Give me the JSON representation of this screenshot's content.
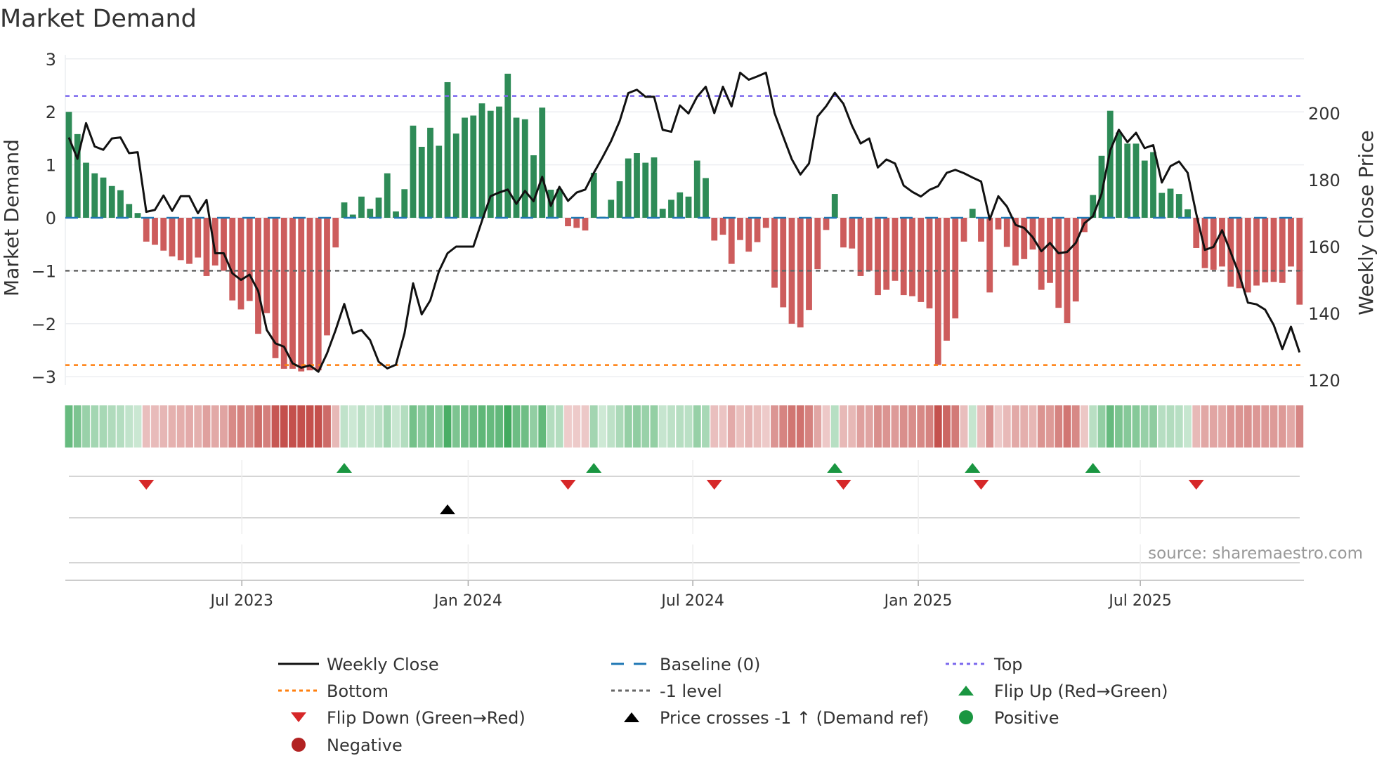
{
  "chart_data": {
    "type": "bar",
    "title": "Market Demand",
    "ylabel": "Market Demand",
    "y2label": "Weekly Close Price",
    "ylim": [
      -3.1,
      3.05
    ],
    "y2lim": [
      117.5,
      212.5
    ],
    "yticks": [
      "3",
      "2",
      "1",
      "0",
      "−1",
      "−2",
      "−3"
    ],
    "ytick_values": [
      3,
      2,
      1,
      0,
      -1,
      -2,
      -3
    ],
    "y2ticks": [
      "200",
      "180",
      "160",
      "140",
      "120"
    ],
    "y2tick_values": [
      200,
      180,
      160,
      140,
      120
    ],
    "xticks": [
      {
        "label": "Jul 2023",
        "week": 20.1
      },
      {
        "label": "Jan 2024",
        "week": 46.4
      },
      {
        "label": "Jul 2024",
        "week": 72.5
      },
      {
        "label": "Jan 2025",
        "week": 98.7
      },
      {
        "label": "Jul 2025",
        "week": 124.5
      }
    ],
    "reference_lines": {
      "top": 2.3,
      "bottom": -2.78,
      "baseline": 0,
      "minus_one": -1
    },
    "demand": [
      2.0,
      1.58,
      1.04,
      0.84,
      0.76,
      0.6,
      0.52,
      0.26,
      0.09,
      -0.45,
      -0.51,
      -0.62,
      -0.73,
      -0.8,
      -0.87,
      -0.75,
      -1.1,
      -0.9,
      -1.0,
      -1.56,
      -1.73,
      -1.57,
      -2.19,
      -1.8,
      -2.65,
      -2.85,
      -2.85,
      -2.9,
      -2.88,
      -2.88,
      -2.22,
      -0.56,
      0.29,
      0.06,
      0.4,
      0.17,
      0.38,
      0.84,
      0.12,
      0.54,
      1.74,
      1.34,
      1.7,
      1.36,
      2.56,
      1.59,
      1.89,
      1.93,
      2.16,
      2.02,
      2.1,
      2.72,
      1.89,
      1.86,
      1.18,
      2.08,
      0.53,
      0.54,
      -0.16,
      -0.19,
      -0.24,
      0.85,
      0.02,
      0.34,
      0.69,
      1.12,
      1.22,
      1.04,
      1.14,
      0.17,
      0.34,
      0.48,
      0.4,
      1.08,
      0.75,
      -0.43,
      -0.32,
      -0.87,
      -0.42,
      -0.64,
      -0.46,
      -0.19,
      -1.32,
      -1.69,
      -2.0,
      -2.07,
      -1.74,
      -0.97,
      -0.23,
      0.45,
      -0.56,
      -0.58,
      -1.1,
      -1.0,
      -1.46,
      -1.36,
      -1.19,
      -1.46,
      -1.48,
      -1.59,
      -1.71,
      -2.78,
      -2.32,
      -1.9,
      -0.45,
      0.17,
      -0.45,
      -1.41,
      -0.22,
      -0.55,
      -0.9,
      -0.78,
      -0.6,
      -1.36,
      -1.23,
      -1.7,
      -1.99,
      -1.58,
      -0.27,
      0.43,
      1.17,
      2.02,
      1.61,
      1.4,
      1.4,
      1.08,
      1.24,
      0.47,
      0.55,
      0.45,
      0.16,
      -0.57,
      -0.95,
      -0.98,
      -0.92,
      -1.3,
      -1.33,
      -1.41,
      -1.28,
      -1.22,
      -1.21,
      -1.23,
      -0.92,
      -1.64
    ],
    "weekly_close": [
      192.7,
      186.3,
      197,
      190,
      189,
      192.4,
      192.7,
      188,
      188.3,
      170.4,
      171,
      175.3,
      170.7,
      175.1,
      175.1,
      170,
      174,
      158,
      158,
      152,
      150,
      151.6,
      146.7,
      135,
      131,
      130,
      125,
      123.7,
      124.4,
      122.5,
      128,
      135,
      142.8,
      134,
      135,
      132,
      125.5,
      123.5,
      124.6,
      134,
      149,
      139.7,
      143.9,
      152.6,
      158,
      160,
      160,
      160,
      167.7,
      175.1,
      176.2,
      177.1,
      172.8,
      176.7,
      173.6,
      180.9,
      172.2,
      177.9,
      173.7,
      176.2,
      177.1,
      182.1,
      186.7,
      191.6,
      197.6,
      206,
      207,
      204.9,
      204.9,
      195,
      194.4,
      202.3,
      199.9,
      204.9,
      207.9,
      200,
      207.9,
      202,
      212.1,
      210,
      211,
      212.1,
      200,
      193,
      186.2,
      181.6,
      184.9,
      199,
      202.1,
      206.1,
      202.8,
      196.2,
      190.9,
      192.4,
      183.7,
      186.1,
      184.9,
      178.3,
      176.4,
      175,
      177,
      178.1,
      182.1,
      183,
      182,
      180.7,
      179.5,
      168.1,
      175.1,
      172,
      166.5,
      165.6,
      162.8,
      158.6,
      161.1,
      158,
      158.4,
      161.1,
      167,
      169.1,
      175.8,
      188.8,
      195,
      191.3,
      194.1,
      189.5,
      190.4,
      179.2,
      184.1,
      185.5,
      182.1,
      169.8,
      159,
      159.9,
      164.9,
      158.3,
      151.6,
      143.2,
      142.7,
      141.1,
      136.5,
      129.3,
      136,
      128.3
    ],
    "flip_up_weeks": [
      32,
      61,
      89,
      105,
      119
    ],
    "flip_down_weeks": [
      9,
      58,
      75,
      90,
      106,
      131
    ],
    "price_cross_weeks": [
      44
    ],
    "legend": [
      {
        "label": "Weekly Close",
        "kind": "line",
        "color": "#111111"
      },
      {
        "label": "Baseline (0)",
        "kind": "dash",
        "color": "#1f77b4"
      },
      {
        "label": "Top",
        "kind": "dot",
        "color": "#7b68ee"
      },
      {
        "label": "Bottom",
        "kind": "dot",
        "color": "#ff7f0e"
      },
      {
        "label": "-1 level",
        "kind": "dot",
        "color": "#666666"
      },
      {
        "label": "Flip Up (Red→Green)",
        "kind": "up",
        "color": "#1a9641"
      },
      {
        "label": "Flip Down (Green→Red)",
        "kind": "down",
        "color": "#d62728"
      },
      {
        "label": "Price crosses -1 ↑ (Demand ref)",
        "kind": "up",
        "color": "#000000"
      },
      {
        "label": "Positive",
        "kind": "circle",
        "color": "#1a9641"
      },
      {
        "label": "Negative",
        "kind": "circle",
        "color": "#b22222"
      }
    ],
    "source": "source: sharemaestro.com",
    "colors": {
      "positive": "#2e8b57",
      "negative": "#cd5c5c"
    }
  }
}
